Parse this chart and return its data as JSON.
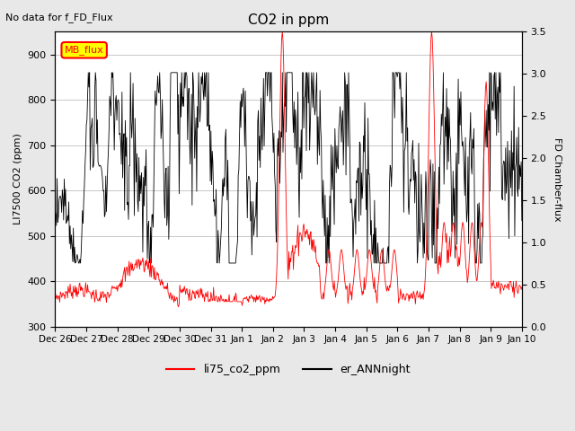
{
  "title": "CO2 in ppm",
  "top_left_text": "No data for f_FD_Flux",
  "ylabel_left": "LI7500 CO2 (ppm)",
  "ylabel_right": "FD Chamber-flux",
  "ylim_left": [
    300,
    950
  ],
  "ylim_right": [
    0.0,
    3.5
  ],
  "x_tick_labels": [
    "Dec 26",
    "Dec 27",
    "Dec 28",
    "Dec 29",
    "Dec 30",
    "Dec 31",
    "Jan 1",
    "Jan 2",
    "Jan 3",
    "Jan 4",
    "Jan 5",
    "Jan 6",
    "Jan 7",
    "Jan 8",
    "Jan 9",
    "Jan 10"
  ],
  "legend_labels": [
    "li75_co2_ppm",
    "er_ANNnight"
  ],
  "mb_flux_box_color": "#ffff00",
  "mb_flux_text_color": "red",
  "mb_flux_border_color": "red",
  "background_color": "#e8e8e8",
  "plot_bg_color": "#ffffff",
  "grid_color": "#c8c8c8"
}
